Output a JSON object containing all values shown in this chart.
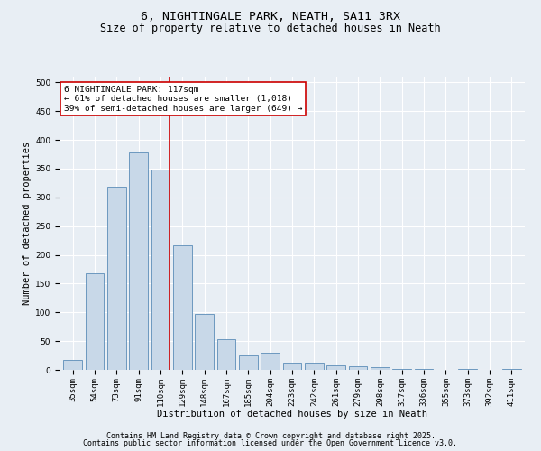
{
  "title1": "6, NIGHTINGALE PARK, NEATH, SA11 3RX",
  "title2": "Size of property relative to detached houses in Neath",
  "xlabel": "Distribution of detached houses by size in Neath",
  "ylabel": "Number of detached properties",
  "categories": [
    "35sqm",
    "54sqm",
    "73sqm",
    "91sqm",
    "110sqm",
    "129sqm",
    "148sqm",
    "167sqm",
    "185sqm",
    "204sqm",
    "223sqm",
    "242sqm",
    "261sqm",
    "279sqm",
    "298sqm",
    "317sqm",
    "336sqm",
    "355sqm",
    "373sqm",
    "392sqm",
    "411sqm"
  ],
  "values": [
    17,
    168,
    318,
    378,
    348,
    216,
    97,
    54,
    25,
    30,
    13,
    12,
    8,
    6,
    5,
    2,
    1,
    0,
    1,
    0,
    1
  ],
  "bar_color": "#c8d8e8",
  "bar_edge_color": "#5b8db8",
  "highlight_index": 4,
  "highlight_line_color": "#cc0000",
  "annotation_text": "6 NIGHTINGALE PARK: 117sqm\n← 61% of detached houses are smaller (1,018)\n39% of semi-detached houses are larger (649) →",
  "annotation_box_color": "#ffffff",
  "annotation_box_edge_color": "#cc0000",
  "ylim": [
    0,
    510
  ],
  "yticks": [
    0,
    50,
    100,
    150,
    200,
    250,
    300,
    350,
    400,
    450,
    500
  ],
  "background_color": "#e8eef4",
  "footer1": "Contains HM Land Registry data © Crown copyright and database right 2025.",
  "footer2": "Contains public sector information licensed under the Open Government Licence v3.0.",
  "title_fontsize": 9.5,
  "subtitle_fontsize": 8.5,
  "axis_label_fontsize": 7.5,
  "tick_fontsize": 6.5,
  "annotation_fontsize": 6.8,
  "footer_fontsize": 6.0
}
